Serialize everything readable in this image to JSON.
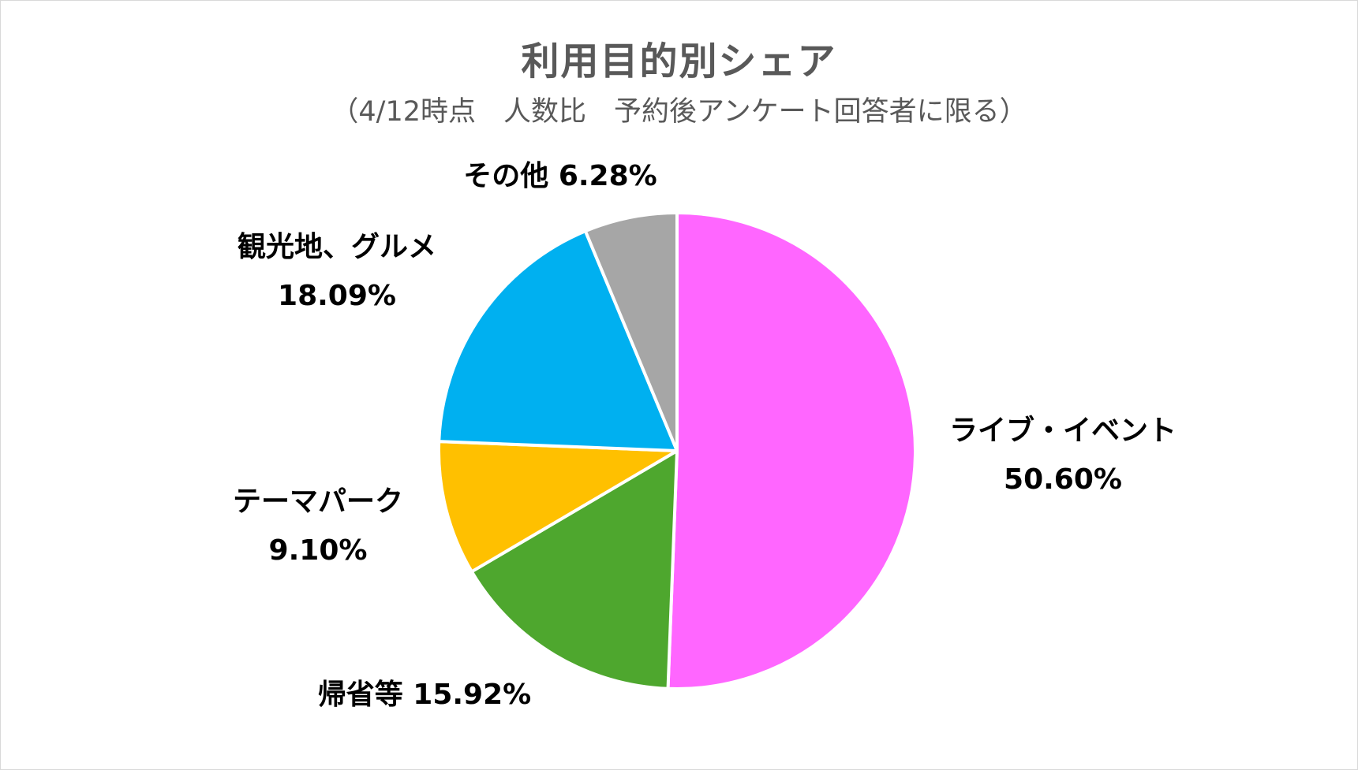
{
  "chart_data": {
    "type": "pie",
    "title": "利用目的別シェア",
    "subtitle": "（4/12時点　人数比　予約後アンケート回答者に限る）",
    "slices": [
      {
        "label": "ライブ・イベント",
        "value": 50.6,
        "value_label": "50.60%",
        "color": "#ff66ff"
      },
      {
        "label": "帰省等",
        "value": 15.92,
        "value_label": "15.92%",
        "color": "#4ea72e"
      },
      {
        "label": "テーマパーク",
        "value": 9.1,
        "value_label": "9.10%",
        "color": "#ffc000"
      },
      {
        "label": "観光地、グルメ",
        "value": 18.09,
        "value_label": "18.09%",
        "color": "#00b0f0"
      },
      {
        "label": "その他",
        "value": 6.28,
        "value_label": "6.28%",
        "color": "#a6a6a6"
      }
    ],
    "start_angle": "12 o'clock",
    "direction": "clockwise",
    "legend": "none"
  }
}
